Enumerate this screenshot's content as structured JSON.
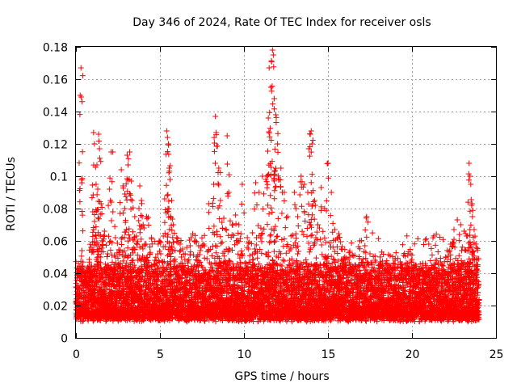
{
  "chart_data": {
    "type": "scatter",
    "title": "Day 346 of 2024, Rate Of TEC Index for receiver osls",
    "xlabel": "GPS time / hours",
    "ylabel": "ROTI / TECUs",
    "xlim": [
      0,
      25
    ],
    "ylim": [
      0,
      0.18
    ],
    "xticks": [
      0,
      5,
      10,
      15,
      20,
      25
    ],
    "xtick_labels": [
      "0",
      "5",
      "10",
      "15",
      "20",
      "25"
    ],
    "yticks": [
      0,
      0.02,
      0.04,
      0.06,
      0.08,
      0.1,
      0.12,
      0.14,
      0.16,
      0.18
    ],
    "ytick_labels": [
      "0",
      "0.02",
      "0.04",
      "0.06",
      "0.08",
      "0.1",
      "0.12",
      "0.14",
      "0.16",
      "0.18"
    ],
    "grid": true,
    "marker": "+",
    "color": "#ff0000",
    "series": [
      {
        "name": "ROTI",
        "points": [
          [
            0.05,
            0.019
          ],
          [
            0.1,
            0.031
          ],
          [
            0.15,
            0.046
          ],
          [
            0.2,
            0.038
          ],
          [
            0.25,
            0.15
          ],
          [
            0.3,
            0.167
          ],
          [
            0.35,
            0.044
          ],
          [
            0.45,
            0.029
          ],
          [
            0.6,
            0.025
          ],
          [
            0.7,
            0.034
          ],
          [
            0.8,
            0.041
          ],
          [
            0.9,
            0.056
          ],
          [
            1.0,
            0.078
          ],
          [
            1.05,
            0.127
          ],
          [
            1.1,
            0.12
          ],
          [
            1.2,
            0.095
          ],
          [
            1.25,
            0.107
          ],
          [
            1.3,
            0.092
          ],
          [
            1.35,
            0.126
          ],
          [
            1.4,
            0.117
          ],
          [
            1.5,
            0.083
          ],
          [
            1.6,
            0.06
          ],
          [
            1.7,
            0.066
          ],
          [
            1.8,
            0.044
          ],
          [
            1.9,
            0.052
          ],
          [
            2.0,
            0.092
          ],
          [
            2.1,
            0.115
          ],
          [
            2.2,
            0.078
          ],
          [
            2.35,
            0.062
          ],
          [
            2.5,
            0.045
          ],
          [
            2.6,
            0.053
          ],
          [
            2.7,
            0.104
          ],
          [
            2.8,
            0.094
          ],
          [
            2.9,
            0.08
          ],
          [
            3.0,
            0.067
          ],
          [
            3.05,
            0.113
          ],
          [
            3.1,
            0.107
          ],
          [
            3.2,
            0.115
          ],
          [
            3.3,
            0.097
          ],
          [
            3.35,
            0.085
          ],
          [
            3.5,
            0.075
          ],
          [
            3.6,
            0.063
          ],
          [
            3.75,
            0.08
          ],
          [
            3.8,
            0.094
          ],
          [
            3.9,
            0.085
          ],
          [
            4.0,
            0.07
          ],
          [
            4.1,
            0.058
          ],
          [
            4.2,
            0.075
          ],
          [
            4.4,
            0.052
          ],
          [
            4.5,
            0.062
          ],
          [
            4.7,
            0.048
          ],
          [
            4.9,
            0.058
          ],
          [
            5.05,
            0.052
          ],
          [
            5.2,
            0.063
          ],
          [
            5.4,
            0.128
          ],
          [
            5.45,
            0.124
          ],
          [
            5.5,
            0.12
          ],
          [
            5.55,
            0.105
          ],
          [
            5.6,
            0.098
          ],
          [
            5.7,
            0.085
          ],
          [
            5.8,
            0.07
          ],
          [
            6.0,
            0.062
          ],
          [
            6.2,
            0.058
          ],
          [
            6.5,
            0.052
          ],
          [
            6.8,
            0.057
          ],
          [
            7.1,
            0.06
          ],
          [
            7.3,
            0.057
          ],
          [
            7.6,
            0.058
          ],
          [
            7.9,
            0.083
          ],
          [
            8.2,
            0.095
          ],
          [
            8.3,
            0.137
          ],
          [
            8.35,
            0.127
          ],
          [
            8.5,
            0.105
          ],
          [
            8.6,
            0.085
          ],
          [
            8.8,
            0.074
          ],
          [
            9.0,
            0.125
          ],
          [
            9.1,
            0.09
          ],
          [
            9.3,
            0.07
          ],
          [
            9.5,
            0.076
          ],
          [
            9.7,
            0.07
          ],
          [
            9.9,
            0.095
          ],
          [
            10.2,
            0.062
          ],
          [
            10.5,
            0.065
          ],
          [
            10.7,
            0.096
          ],
          [
            10.9,
            0.09
          ],
          [
            11.1,
            0.1
          ],
          [
            11.3,
            0.098
          ],
          [
            11.45,
            0.136
          ],
          [
            11.5,
            0.167
          ],
          [
            11.6,
            0.155
          ],
          [
            11.7,
            0.178
          ],
          [
            11.75,
            0.175
          ],
          [
            11.8,
            0.148
          ],
          [
            11.9,
            0.138
          ],
          [
            12.0,
            0.12
          ],
          [
            12.2,
            0.105
          ],
          [
            12.4,
            0.09
          ],
          [
            12.6,
            0.075
          ],
          [
            12.8,
            0.063
          ],
          [
            13.0,
            0.09
          ],
          [
            13.2,
            0.075
          ],
          [
            13.4,
            0.1
          ],
          [
            13.6,
            0.095
          ],
          [
            13.8,
            0.09
          ],
          [
            13.95,
            0.126
          ],
          [
            14.0,
            0.128
          ],
          [
            14.05,
            0.12
          ],
          [
            14.2,
            0.085
          ],
          [
            14.4,
            0.07
          ],
          [
            14.6,
            0.093
          ],
          [
            14.8,
            0.08
          ],
          [
            15.0,
            0.108
          ],
          [
            15.2,
            0.09
          ],
          [
            15.4,
            0.067
          ],
          [
            15.6,
            0.062
          ],
          [
            15.8,
            0.055
          ],
          [
            16.0,
            0.05
          ],
          [
            16.3,
            0.05
          ],
          [
            16.6,
            0.045
          ],
          [
            16.9,
            0.06
          ],
          [
            17.2,
            0.057
          ],
          [
            17.3,
            0.075
          ],
          [
            17.5,
            0.052
          ],
          [
            17.8,
            0.048
          ],
          [
            18.1,
            0.047
          ],
          [
            18.4,
            0.042
          ],
          [
            18.7,
            0.044
          ],
          [
            19.0,
            0.048
          ],
          [
            19.3,
            0.047
          ],
          [
            19.6,
            0.045
          ],
          [
            19.9,
            0.052
          ],
          [
            20.2,
            0.045
          ],
          [
            20.5,
            0.04
          ],
          [
            20.8,
            0.046
          ],
          [
            21.1,
            0.042
          ],
          [
            21.4,
            0.048
          ],
          [
            21.7,
            0.047
          ],
          [
            22.0,
            0.05
          ],
          [
            22.3,
            0.058
          ],
          [
            22.5,
            0.067
          ],
          [
            22.7,
            0.073
          ],
          [
            22.9,
            0.07
          ],
          [
            23.1,
            0.066
          ],
          [
            23.3,
            0.063
          ],
          [
            23.4,
            0.108
          ],
          [
            23.45,
            0.1
          ],
          [
            23.5,
            0.095
          ],
          [
            23.55,
            0.082
          ],
          [
            23.6,
            0.075
          ],
          [
            23.7,
            0.067
          ],
          [
            23.8,
            0.058
          ],
          [
            23.9,
            0.049
          ]
        ]
      }
    ],
    "baseline": {
      "description": "dense band of points across the whole day",
      "y_range": [
        0.005,
        0.045
      ]
    }
  }
}
